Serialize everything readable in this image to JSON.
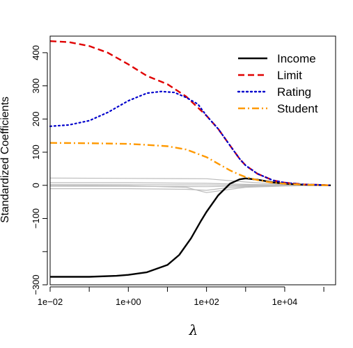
{
  "chart_data": {
    "type": "line",
    "xlabel": "λ",
    "ylabel": "Standardized Coefficients",
    "x_scale": "log10",
    "xlim": [
      0.01,
      200000
    ],
    "ylim": [
      -300,
      450
    ],
    "x_ticks": [
      {
        "value": 0.01,
        "label": "1e−02"
      },
      {
        "value": 1,
        "label": "1e+00"
      },
      {
        "value": 100,
        "label": "1e+02"
      },
      {
        "value": 10000,
        "label": "1e+04"
      }
    ],
    "y_ticks": [
      {
        "value": -300,
        "label": "−300"
      },
      {
        "value": -100,
        "label": "−100"
      },
      {
        "value": 0,
        "label": "0"
      },
      {
        "value": 100,
        "label": "100"
      },
      {
        "value": 200,
        "label": "200"
      },
      {
        "value": 300,
        "label": "300"
      },
      {
        "value": 400,
        "label": "400"
      }
    ],
    "legend_position": "top-right",
    "series": [
      {
        "name": "Income",
        "color": "#000000",
        "dash": "solid",
        "points": [
          [
            0.01,
            -276
          ],
          [
            0.1,
            -276
          ],
          [
            0.5,
            -273
          ],
          [
            1,
            -270
          ],
          [
            3,
            -262
          ],
          [
            10,
            -240
          ],
          [
            20,
            -210
          ],
          [
            40,
            -160
          ],
          [
            70,
            -110
          ],
          [
            100,
            -80
          ],
          [
            200,
            -30
          ],
          [
            400,
            5
          ],
          [
            700,
            18
          ],
          [
            1000,
            21
          ],
          [
            2000,
            17
          ],
          [
            5000,
            9
          ],
          [
            10000,
            5
          ],
          [
            30000,
            2
          ],
          [
            100000,
            0.5
          ],
          [
            150000,
            0
          ]
        ]
      },
      {
        "name": "Limit",
        "color": "#e00000",
        "dash": "dashed",
        "points": [
          [
            0.01,
            435
          ],
          [
            0.03,
            432
          ],
          [
            0.1,
            420
          ],
          [
            0.3,
            400
          ],
          [
            1,
            365
          ],
          [
            3,
            330
          ],
          [
            10,
            305
          ],
          [
            30,
            268
          ],
          [
            100,
            210
          ],
          [
            200,
            170
          ],
          [
            400,
            120
          ],
          [
            700,
            80
          ],
          [
            1000,
            60
          ],
          [
            2000,
            35
          ],
          [
            5000,
            15
          ],
          [
            10000,
            8
          ],
          [
            30000,
            3
          ],
          [
            100000,
            1
          ],
          [
            150000,
            0
          ]
        ]
      },
      {
        "name": "Rating",
        "color": "#0000cc",
        "dash": "dotted",
        "points": [
          [
            0.01,
            178
          ],
          [
            0.03,
            182
          ],
          [
            0.1,
            195
          ],
          [
            0.3,
            220
          ],
          [
            1,
            255
          ],
          [
            3,
            278
          ],
          [
            7,
            283
          ],
          [
            15,
            280
          ],
          [
            30,
            265
          ],
          [
            60,
            245
          ],
          [
            100,
            210
          ],
          [
            200,
            170
          ],
          [
            400,
            120
          ],
          [
            700,
            80
          ],
          [
            1000,
            60
          ],
          [
            2000,
            35
          ],
          [
            5000,
            15
          ],
          [
            10000,
            8
          ],
          [
            30000,
            3
          ],
          [
            100000,
            1
          ],
          [
            150000,
            0
          ]
        ]
      },
      {
        "name": "Student",
        "color": "#ff9900",
        "dash": "dashdot",
        "points": [
          [
            0.01,
            128
          ],
          [
            0.1,
            127
          ],
          [
            1,
            125
          ],
          [
            3,
            122
          ],
          [
            10,
            118
          ],
          [
            30,
            108
          ],
          [
            100,
            85
          ],
          [
            200,
            65
          ],
          [
            400,
            45
          ],
          [
            700,
            32
          ],
          [
            1000,
            25
          ],
          [
            2000,
            16
          ],
          [
            5000,
            8
          ],
          [
            10000,
            5
          ],
          [
            30000,
            2
          ],
          [
            100000,
            0.5
          ],
          [
            150000,
            0
          ]
        ]
      },
      {
        "name": "",
        "color": "#bbbbbb",
        "dash": "solid",
        "points": [
          [
            0.01,
            22
          ],
          [
            1,
            21
          ],
          [
            100,
            20
          ],
          [
            1000,
            10
          ],
          [
            10000,
            2
          ],
          [
            150000,
            0
          ]
        ]
      },
      {
        "name": "",
        "color": "#bbbbbb",
        "dash": "solid",
        "points": [
          [
            0.01,
            8
          ],
          [
            1,
            8
          ],
          [
            100,
            6
          ],
          [
            1000,
            3
          ],
          [
            10000,
            1
          ],
          [
            150000,
            0
          ]
        ]
      },
      {
        "name": "",
        "color": "#bbbbbb",
        "dash": "solid",
        "points": [
          [
            0.01,
            2
          ],
          [
            1,
            2
          ],
          [
            100,
            1
          ],
          [
            1000,
            0.5
          ],
          [
            150000,
            0
          ]
        ]
      },
      {
        "name": "",
        "color": "#bbbbbb",
        "dash": "solid",
        "points": [
          [
            0.01,
            -3
          ],
          [
            1,
            -3
          ],
          [
            100,
            -4
          ],
          [
            1000,
            -2
          ],
          [
            10000,
            -1
          ],
          [
            150000,
            0
          ]
        ]
      },
      {
        "name": "",
        "color": "#bbbbbb",
        "dash": "solid",
        "points": [
          [
            0.01,
            -10
          ],
          [
            1,
            -10
          ],
          [
            30,
            -12
          ],
          [
            100,
            -15
          ],
          [
            300,
            -8
          ],
          [
            1000,
            -4
          ],
          [
            10000,
            -1
          ],
          [
            150000,
            0
          ]
        ]
      },
      {
        "name": "",
        "color": "#bbbbbb",
        "dash": "solid",
        "points": [
          [
            0.01,
            0
          ],
          [
            1,
            -1
          ],
          [
            30,
            -6
          ],
          [
            100,
            -22
          ],
          [
            300,
            -14
          ],
          [
            1000,
            -6
          ],
          [
            10000,
            -2
          ],
          [
            150000,
            0
          ]
        ]
      }
    ]
  }
}
